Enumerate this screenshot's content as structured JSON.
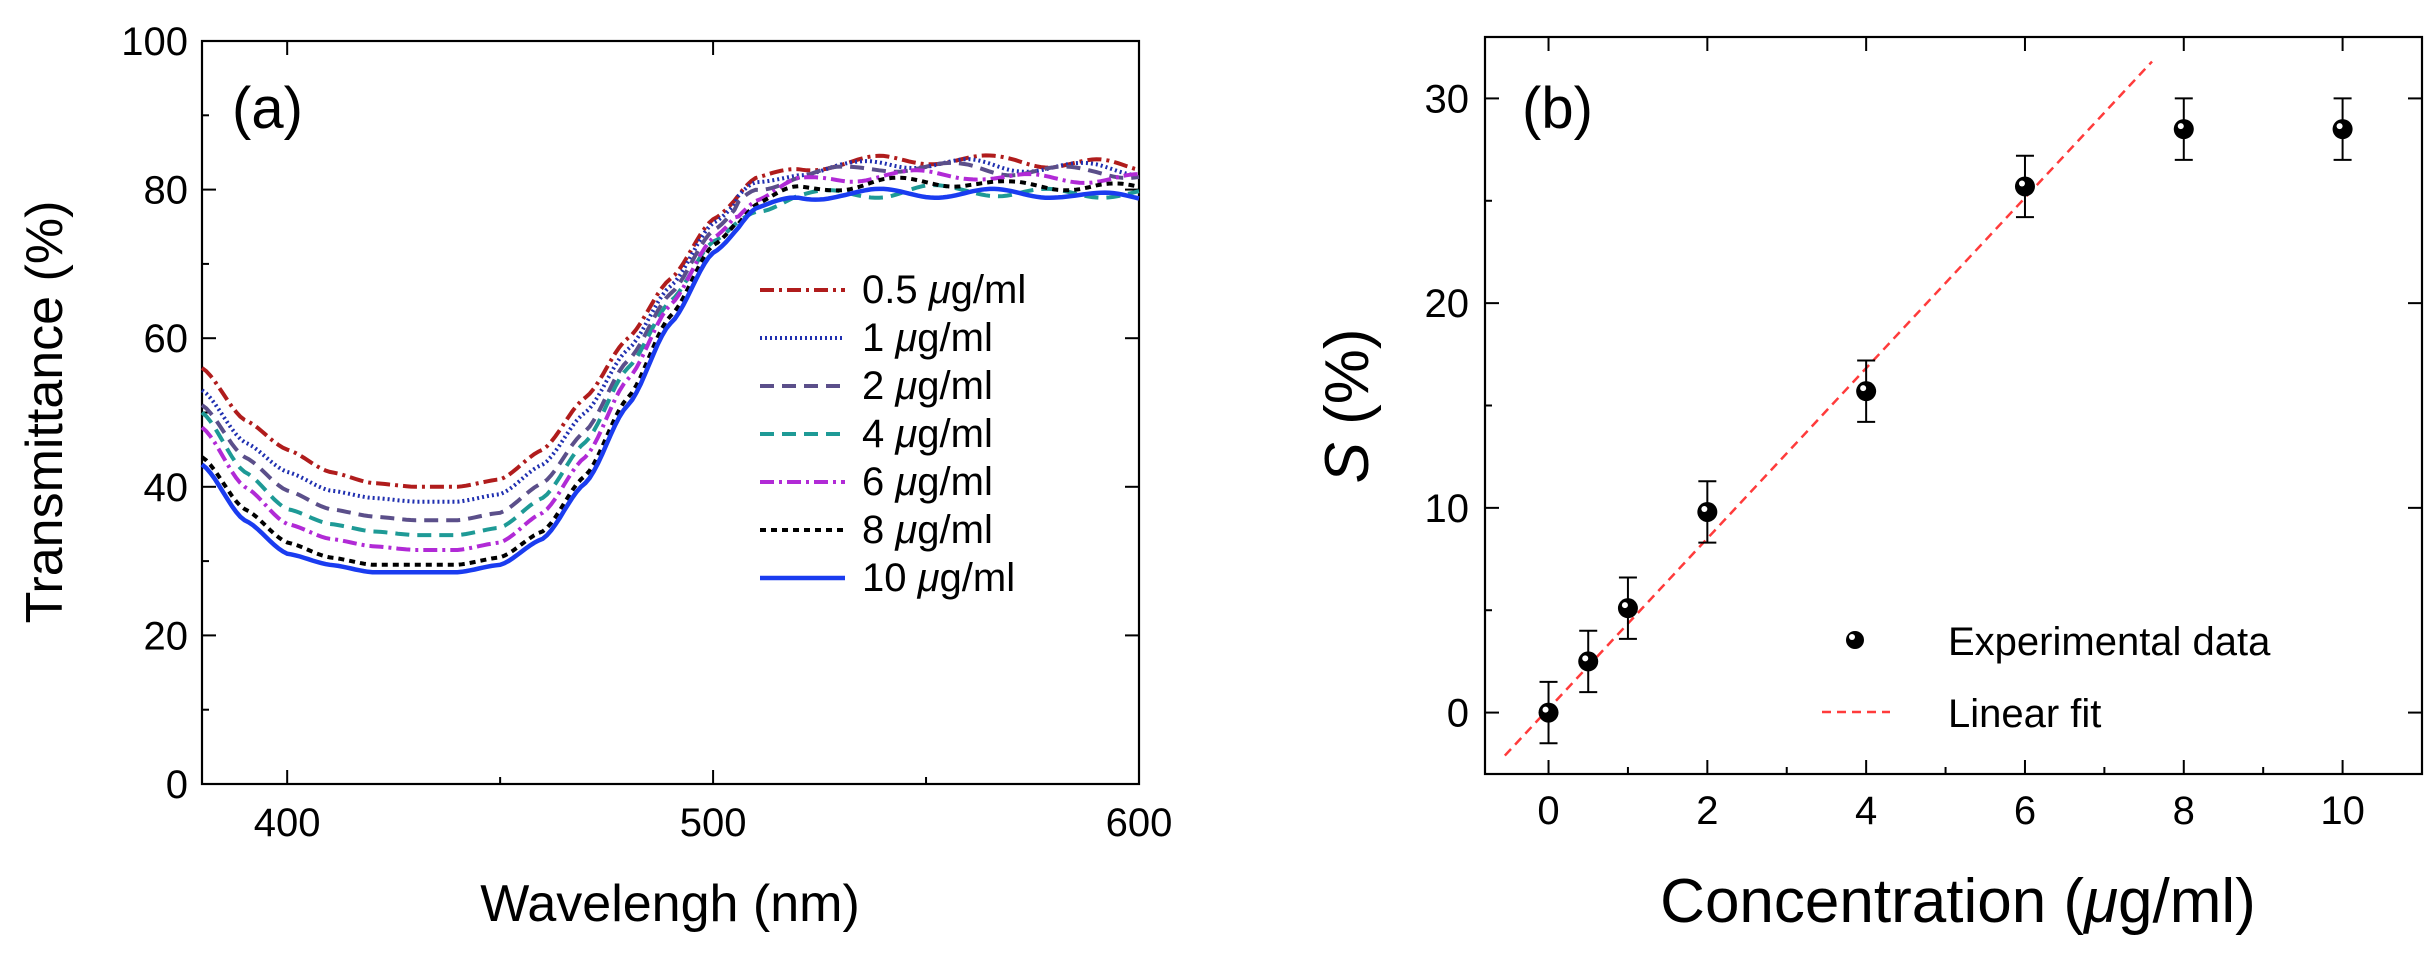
{
  "chart_data": [
    {
      "panel": "(a)",
      "type": "line",
      "xlabel": "Wavelengh (nm)",
      "ylabel": "Transmittance (%)",
      "xlim": [
        380,
        600
      ],
      "ylim": [
        0,
        100
      ],
      "xticks": [
        "400",
        "500",
        "600"
      ],
      "yticks": [
        "0",
        "20",
        "40",
        "60",
        "80",
        "100"
      ],
      "series": [
        {
          "name": "0.5 μg/ml",
          "color": "#b01c1c",
          "dash": "dashdot",
          "x": [
            380,
            390,
            400,
            410,
            420,
            430,
            440,
            450,
            460,
            470,
            480,
            490,
            500,
            510,
            520,
            530,
            540,
            550,
            560,
            570,
            580,
            590,
            600
          ],
          "y": [
            56,
            49,
            45,
            42,
            40.5,
            40,
            40,
            41,
            45,
            52,
            60,
            68,
            76,
            81,
            83,
            83.5,
            84,
            84,
            84,
            84,
            83.5,
            83.5,
            83
          ]
        },
        {
          "name": "1 μg/ml",
          "color": "#1f2fb0",
          "dash": "dotted",
          "x": [
            380,
            390,
            400,
            410,
            420,
            430,
            440,
            450,
            460,
            470,
            480,
            490,
            500,
            510,
            520,
            530,
            540,
            550,
            560,
            570,
            580,
            590,
            600
          ],
          "y": [
            53,
            46,
            42,
            39.5,
            38.5,
            38,
            38,
            39,
            43,
            50,
            58.5,
            67,
            75.5,
            80.5,
            82.5,
            83,
            83.5,
            83.5,
            83.5,
            83,
            83,
            83,
            82.5
          ]
        },
        {
          "name": "2 μg/ml",
          "color": "#5b4f8a",
          "dash": "longdash",
          "x": [
            380,
            390,
            400,
            410,
            420,
            430,
            440,
            450,
            460,
            470,
            480,
            490,
            500,
            510,
            520,
            530,
            540,
            550,
            560,
            570,
            580,
            590,
            600
          ],
          "y": [
            51,
            44,
            39.5,
            37,
            36,
            35.5,
            35.5,
            36.5,
            40.5,
            47.5,
            57,
            66,
            74.5,
            80,
            82,
            82.5,
            83,
            83,
            83,
            82.5,
            82.5,
            82.5,
            82
          ]
        },
        {
          "name": "4 μg/ml",
          "color": "#1e9a96",
          "dash": "longdash",
          "x": [
            380,
            390,
            400,
            410,
            420,
            430,
            440,
            450,
            460,
            470,
            480,
            490,
            500,
            510,
            520,
            530,
            540,
            550,
            560,
            570,
            580,
            590,
            600
          ],
          "y": [
            50,
            42,
            37,
            35,
            34,
            33.5,
            33.5,
            34.5,
            38.5,
            46,
            56,
            65,
            73,
            77.5,
            79,
            79.5,
            79.5,
            80,
            80,
            79.5,
            79.5,
            79.5,
            79.5
          ]
        },
        {
          "name": "6 μg/ml",
          "color": "#b12ad6",
          "dash": "dashdot",
          "x": [
            380,
            390,
            400,
            410,
            420,
            430,
            440,
            450,
            460,
            470,
            480,
            490,
            500,
            510,
            520,
            530,
            540,
            550,
            560,
            570,
            580,
            590,
            600
          ],
          "y": [
            48,
            40,
            35,
            33,
            32,
            31.5,
            31.5,
            32.5,
            36.5,
            44,
            54.5,
            64.5,
            73.5,
            79,
            81,
            81.5,
            82,
            82,
            82,
            81.5,
            81.5,
            81.5,
            81.5
          ]
        },
        {
          "name": "8 μg/ml",
          "color": "#000000",
          "dash": "shortdash",
          "x": [
            380,
            390,
            400,
            410,
            420,
            430,
            440,
            450,
            460,
            470,
            480,
            490,
            500,
            510,
            520,
            530,
            540,
            550,
            560,
            570,
            580,
            590,
            600
          ],
          "y": [
            44,
            37,
            32.5,
            30.5,
            29.5,
            29.5,
            29.5,
            30.5,
            34,
            41.5,
            52,
            63,
            72.5,
            78,
            80,
            80.5,
            81,
            81,
            81,
            80.5,
            80.5,
            80.5,
            80
          ]
        },
        {
          "name": "10 μg/ml",
          "color": "#1a3cf0",
          "dash": "solid",
          "x": [
            380,
            390,
            400,
            410,
            420,
            430,
            440,
            450,
            460,
            470,
            480,
            490,
            500,
            510,
            520,
            530,
            540,
            550,
            560,
            570,
            580,
            590,
            600
          ],
          "y": [
            43,
            35.5,
            31,
            29.5,
            28.5,
            28.5,
            28.5,
            29.5,
            33,
            40.5,
            51,
            62,
            71.5,
            77,
            79,
            79.5,
            79.5,
            79.5,
            79.5,
            79.5,
            79.5,
            79,
            79
          ]
        }
      ]
    },
    {
      "panel": "(b)",
      "type": "scatter",
      "xlabel_pre": "Concentration (",
      "xlabel_mu": "μ",
      "xlabel_post": "g/ml)",
      "ylabel_var": "S",
      "ylabel_unit": " (%)",
      "xlim": [
        -0.8,
        11.0
      ],
      "ylim": [
        -3,
        33
      ],
      "xticks": [
        "0",
        "2",
        "4",
        "6",
        "8",
        "10"
      ],
      "yticks": [
        "0",
        "10",
        "20",
        "30"
      ],
      "series": [
        {
          "name": "Experimental data",
          "kind": "points_with_error",
          "x": [
            0,
            0.5,
            1,
            2,
            4,
            6,
            8,
            10
          ],
          "y": [
            0,
            2.5,
            5.1,
            9.8,
            15.7,
            25.7,
            28.5,
            28.5
          ],
          "err": [
            1.5,
            1.5,
            1.5,
            1.5,
            1.5,
            1.5,
            1.5,
            1.5
          ]
        },
        {
          "name": "Linear fit",
          "kind": "line",
          "color": "#ff3b3b",
          "x": [
            -0.55,
            7.6
          ],
          "y": [
            -2.1,
            31.8
          ]
        }
      ]
    }
  ],
  "legend_a": {
    "items": [
      {
        "value": "0.5 ",
        "mu": "μ",
        "unit": "g/ml"
      },
      {
        "value": "1 ",
        "mu": "μ",
        "unit": "g/ml"
      },
      {
        "value": "2 ",
        "mu": "μ",
        "unit": "g/ml"
      },
      {
        "value": "4 ",
        "mu": "μ",
        "unit": "g/ml"
      },
      {
        "value": "6 ",
        "mu": "μ",
        "unit": "g/ml"
      },
      {
        "value": "8 ",
        "mu": "μ",
        "unit": "g/ml"
      },
      {
        "value": "10 ",
        "mu": "μ",
        "unit": "g/ml"
      }
    ]
  }
}
